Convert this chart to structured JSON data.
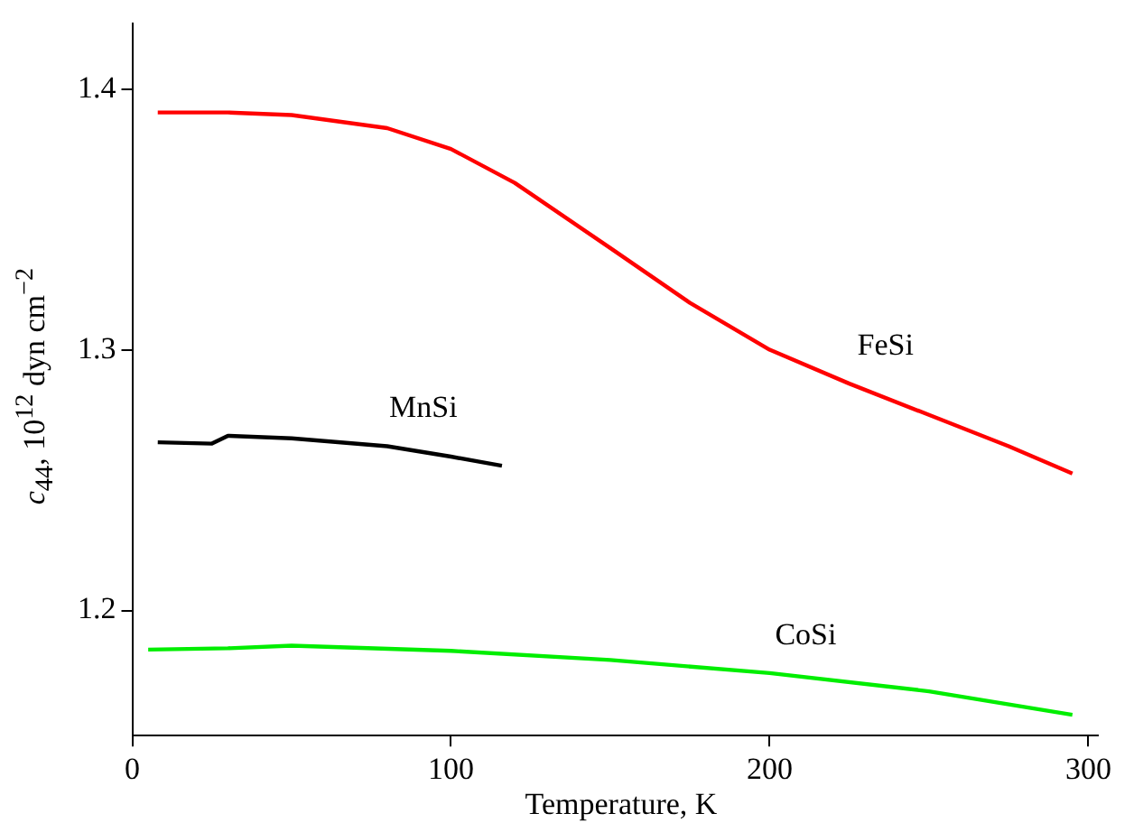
{
  "chart_data": {
    "type": "line",
    "xlabel": "Temperature, K",
    "ylabel": "c$_{44}$, 10$^{12}$ dyn cm$^{−2}$",
    "xlim": [
      0,
      303
    ],
    "xticks": [
      0,
      100,
      200,
      300
    ],
    "ylim": [
      1.152,
      1.425
    ],
    "yticks": [
      1.2,
      1.3,
      1.4
    ],
    "grid": false,
    "legend": false,
    "marker": "none",
    "series": [
      {
        "name": "FeSi",
        "color": "#ff0000",
        "x": [
          8,
          30,
          50,
          80,
          100,
          120,
          150,
          175,
          200,
          225,
          250,
          275,
          295
        ],
        "values": [
          1.391,
          1.391,
          1.39,
          1.385,
          1.377,
          1.364,
          1.339,
          1.318,
          1.3,
          1.287,
          1.275,
          1.263,
          1.2525
        ]
      },
      {
        "name": "MnSi",
        "color": "#000000",
        "x": [
          8,
          25,
          30,
          50,
          80,
          100,
          116
        ],
        "values": [
          1.2645,
          1.264,
          1.267,
          1.266,
          1.263,
          1.259,
          1.2555
        ]
      },
      {
        "name": "CoSi",
        "color": "#00ee00",
        "x": [
          5,
          30,
          50,
          100,
          150,
          200,
          250,
          295
        ],
        "values": [
          1.185,
          1.1855,
          1.1865,
          1.1845,
          1.181,
          1.176,
          1.169,
          1.16
        ]
      }
    ]
  }
}
